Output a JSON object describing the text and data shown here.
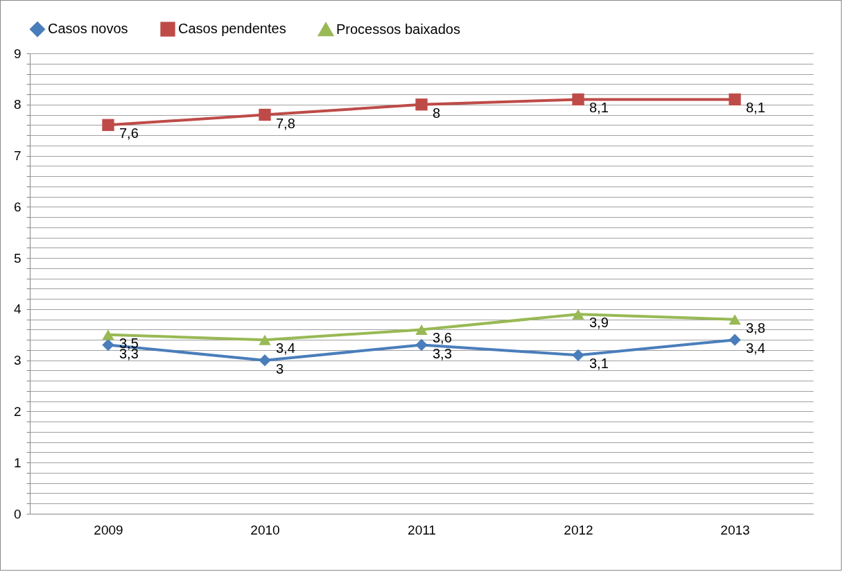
{
  "chart_data": {
    "type": "line",
    "categories": [
      "2009",
      "2010",
      "2011",
      "2012",
      "2013"
    ],
    "series": [
      {
        "name": "Casos novos",
        "color": "#4a7ebb",
        "marker": "diamond",
        "values": [
          3.3,
          3,
          3.3,
          3.1,
          3.4
        ],
        "value_labels": [
          "3,3",
          "3",
          "3,3",
          "3,1",
          "3,4"
        ]
      },
      {
        "name": "Casos pendentes",
        "color": "#be4b48",
        "marker": "square",
        "values": [
          7.6,
          7.8,
          8,
          8.1,
          8.1
        ],
        "value_labels": [
          "7,6",
          "7,8",
          "8",
          "8,1",
          "8,1"
        ]
      },
      {
        "name": "Processos baixados",
        "color": "#98b954",
        "marker": "triangle",
        "values": [
          3.5,
          3.4,
          3.6,
          3.9,
          3.8
        ],
        "value_labels": [
          "3,5",
          "3,4",
          "3,6",
          "3,9",
          "3,8"
        ]
      }
    ],
    "ylim": [
      0,
      9
    ],
    "yticks": [
      0,
      {
        "value": 0.2,
        "label": null
      },
      {
        "value": 0.4,
        "label": null
      },
      {
        "value": 0.6,
        "label": null
      },
      {
        "value": 0.8,
        "label": null
      },
      1,
      {
        "value": 1.2,
        "label": null
      },
      {
        "value": 1.4,
        "label": null
      },
      {
        "value": 1.6,
        "label": null
      },
      {
        "value": 1.8,
        "label": null
      },
      2,
      {
        "value": 2.2,
        "label": null
      },
      {
        "value": 2.4,
        "label": null
      },
      {
        "value": 2.6,
        "label": null
      },
      {
        "value": 2.8,
        "label": null
      },
      3,
      {
        "value": 3.2,
        "label": null
      },
      {
        "value": 3.4,
        "label": null
      },
      {
        "value": 3.6,
        "label": null
      },
      {
        "value": 3.8,
        "label": null
      },
      4,
      {
        "value": 4.2,
        "label": null
      },
      {
        "value": 4.4,
        "label": null
      },
      {
        "value": 4.6,
        "label": null
      },
      {
        "value": 4.8,
        "label": null
      },
      5,
      {
        "value": 5.2,
        "label": null
      },
      {
        "value": 5.4,
        "label": null
      },
      {
        "value": 5.6,
        "label": null
      },
      {
        "value": 5.8,
        "label": null
      },
      6,
      {
        "value": 6.2,
        "label": null
      },
      {
        "value": 6.4,
        "label": null
      },
      {
        "value": 6.6,
        "label": null
      },
      {
        "value": 6.8,
        "label": null
      },
      7,
      {
        "value": 7.2,
        "label": null
      },
      {
        "value": 7.4,
        "label": null
      },
      {
        "value": 7.6,
        "label": null
      },
      {
        "value": 7.8,
        "label": null
      },
      8,
      {
        "value": 8.2,
        "label": null
      },
      {
        "value": 8.4,
        "label": null
      },
      {
        "value": 8.6,
        "label": null
      },
      {
        "value": 8.8,
        "label": null
      },
      9
    ],
    "grid": "y",
    "legend": "top",
    "line_style": "solid"
  }
}
